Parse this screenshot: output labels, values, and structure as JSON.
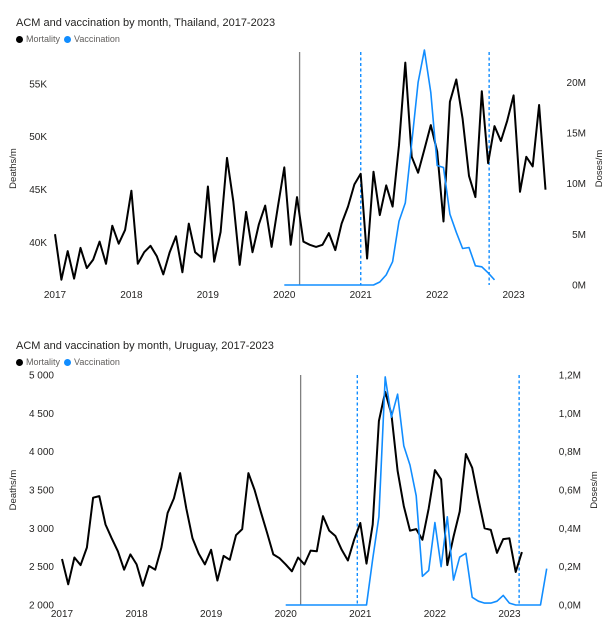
{
  "chart_data": [
    {
      "type": "line",
      "title": "ACM and vaccination by month, Thailand, 2017-2023",
      "legend": {
        "placement": "top-left",
        "items": [
          "Mortality",
          "Vaccination"
        ]
      },
      "colors": {
        "mortality": "#000000",
        "vaccination": "#118DFF",
        "baseline": "#808080"
      },
      "ylabel": "Deaths/m",
      "y2label": "Doses/m",
      "x_ticks": [
        "2017",
        "2018",
        "2019",
        "2020",
        "2021",
        "2022",
        "2023"
      ],
      "x_range": [
        2017.0,
        2023.45
      ],
      "ylim": [
        36000,
        58000
      ],
      "y_ticks": [
        {
          "value": 40000,
          "label": "40K"
        },
        {
          "value": 45000,
          "label": "45K"
        },
        {
          "value": 50000,
          "label": "50K"
        },
        {
          "value": 55000,
          "label": "55K"
        }
      ],
      "y2lim": [
        0,
        23000000
      ],
      "y2_ticks": [
        {
          "value": 0,
          "label": "0M"
        },
        {
          "value": 5000000,
          "label": "5M"
        },
        {
          "value": 10000000,
          "label": "10M"
        },
        {
          "value": 15000000,
          "label": "15M"
        },
        {
          "value": 20000000,
          "label": "20M"
        }
      ],
      "vlines": [
        {
          "x": 2020.2,
          "style": "solid"
        },
        {
          "x": 2021.0,
          "style": "dashed"
        },
        {
          "x": 2022.68,
          "style": "dashed"
        }
      ],
      "series": [
        {
          "name": "Mortality",
          "axis": "left",
          "x_start": 2017.0,
          "x_step": 0.0833333,
          "values": [
            40800,
            36500,
            39200,
            36600,
            39500,
            37600,
            38400,
            40100,
            38000,
            41600,
            39900,
            41200,
            44900,
            38000,
            39100,
            39700,
            38700,
            37000,
            39100,
            40600,
            37200,
            41800,
            39100,
            38600,
            45300,
            38200,
            41000,
            48000,
            43900,
            37900,
            42900,
            39100,
            41700,
            43500,
            39600,
            43400,
            47100,
            39800,
            44300,
            40100,
            39800,
            39600,
            39800,
            40900,
            39300,
            41800,
            43400,
            45500,
            46500,
            38500,
            46700,
            42600,
            45400,
            43400,
            49200,
            57000,
            48100,
            46600,
            48800,
            51100,
            48600,
            42000,
            53300,
            55400,
            51700,
            46300,
            44300,
            54300,
            47500,
            51000,
            49600,
            51500,
            53900,
            44800,
            48100,
            47200,
            53000,
            45000
          ]
        },
        {
          "name": "Vaccination",
          "axis": "right",
          "x_start": 2020.0,
          "x_step": 0.0833333,
          "values": [
            0,
            0,
            0,
            0,
            0,
            0,
            0,
            0,
            0,
            0,
            0,
            0,
            0,
            0,
            0,
            300000,
            1000000,
            2300000,
            6300000,
            8100000,
            14000000,
            20000000,
            23200000,
            19000000,
            11800000,
            11600000,
            7000000,
            5200000,
            3600000,
            3700000,
            1900000,
            1800000,
            1200000,
            500000
          ]
        }
      ]
    },
    {
      "type": "line",
      "title": "ACM and vaccination by month, Uruguay, 2017-2023",
      "legend": {
        "placement": "top-left",
        "items": [
          "Mortality",
          "Vaccination"
        ]
      },
      "colors": {
        "mortality": "#000000",
        "vaccination": "#118DFF",
        "baseline": "#808080"
      },
      "ylabel": "Deaths/m",
      "y2label": "Doses/m",
      "x_ticks": [
        "2017",
        "2018",
        "2019",
        "2020",
        "2021",
        "2022",
        "2023"
      ],
      "x_range": [
        2017.0,
        2023.45
      ],
      "ylim": [
        2000,
        5000
      ],
      "y_ticks": [
        {
          "value": 2000,
          "label": "2 000"
        },
        {
          "value": 2500,
          "label": "2 500"
        },
        {
          "value": 3000,
          "label": "3 000"
        },
        {
          "value": 3500,
          "label": "3 500"
        },
        {
          "value": 4000,
          "label": "4 000"
        },
        {
          "value": 4500,
          "label": "4 500"
        },
        {
          "value": 5000,
          "label": "5 000"
        }
      ],
      "y2lim": [
        0,
        1200000
      ],
      "y2_ticks": [
        {
          "value": 0,
          "label": "0,0M"
        },
        {
          "value": 200000,
          "label": "0,2M"
        },
        {
          "value": 400000,
          "label": "0,4M"
        },
        {
          "value": 600000,
          "label": "0,6M"
        },
        {
          "value": 800000,
          "label": "0,8M"
        },
        {
          "value": 1000000,
          "label": "1,0M"
        },
        {
          "value": 1200000,
          "label": "1,2M"
        }
      ],
      "vlines": [
        {
          "x": 2020.2,
          "style": "solid"
        },
        {
          "x": 2020.96,
          "style": "dashed"
        },
        {
          "x": 2023.13,
          "style": "dashed"
        }
      ],
      "series": [
        {
          "name": "Mortality",
          "axis": "left",
          "x_start": 2017.0,
          "x_step": 0.0833333,
          "values": [
            2600,
            2270,
            2620,
            2520,
            2750,
            3400,
            3420,
            3050,
            2870,
            2700,
            2460,
            2660,
            2530,
            2250,
            2510,
            2460,
            2750,
            3200,
            3390,
            3720,
            3260,
            2870,
            2670,
            2530,
            2720,
            2320,
            2640,
            2590,
            2910,
            2990,
            3720,
            3500,
            3210,
            2940,
            2660,
            2610,
            2530,
            2440,
            2620,
            2530,
            2710,
            2700,
            3160,
            2970,
            2900,
            2720,
            2580,
            2850,
            3070,
            2540,
            3050,
            4400,
            4780,
            4490,
            3750,
            3290,
            2970,
            2990,
            2850,
            3260,
            3760,
            3640,
            2520,
            2890,
            3220,
            3970,
            3790,
            3380,
            3000,
            2980,
            2680,
            2860,
            2870,
            2430,
            2690
          ]
        },
        {
          "name": "Vaccination",
          "axis": "right",
          "x_start": 2020.0,
          "x_step": 0.0833333,
          "values": [
            0,
            0,
            0,
            0,
            0,
            0,
            0,
            0,
            0,
            0,
            0,
            0,
            0,
            0,
            240000,
            460000,
            1190000,
            980000,
            1100000,
            830000,
            730000,
            570000,
            150000,
            180000,
            430000,
            200000,
            460000,
            130000,
            250000,
            270000,
            40000,
            20000,
            10000,
            10000,
            20000,
            50000,
            10000,
            0,
            0,
            0,
            0,
            0,
            190000
          ]
        }
      ]
    }
  ]
}
